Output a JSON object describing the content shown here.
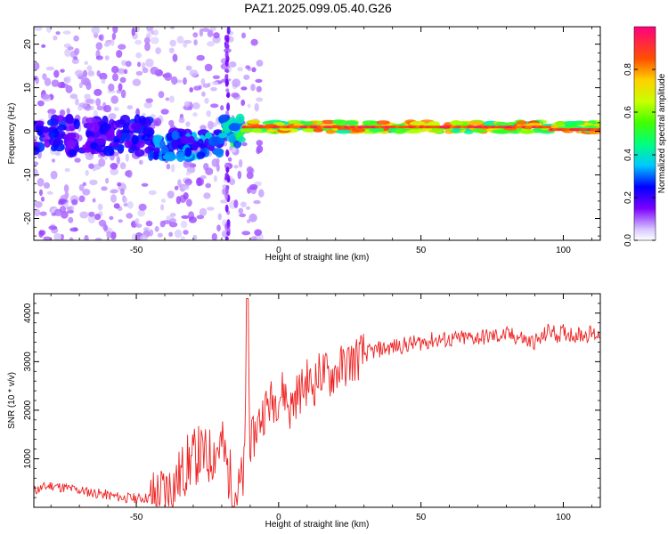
{
  "title": "PAZ1.2025.099.05.40.G26",
  "chart_data": [
    {
      "type": "heatmap",
      "title": "PAZ1.2025.099.05.40.G26",
      "xlabel": "Height of straight line (km)",
      "ylabel": "Frequency (Hz)",
      "xlim": [
        -86,
        113
      ],
      "ylim": [
        -25,
        24
      ],
      "xticks": [
        -50,
        0,
        50,
        100
      ],
      "yticks": [
        -20,
        -10,
        0,
        10,
        20
      ],
      "colorbar": {
        "label": "Normalized spectral amplitude",
        "range": [
          0.0,
          1.0
        ],
        "ticks": [
          0.0,
          0.2,
          0.4,
          0.6,
          0.8
        ]
      },
      "features": [
        {
          "x_range": [
            -86,
            -45
          ],
          "freq_center": -1,
          "freq_spread": 4,
          "amplitude": 0.25
        },
        {
          "x_range": [
            -45,
            -20
          ],
          "freq_center": -3,
          "freq_spread": 3,
          "amplitude": 0.35
        },
        {
          "x_range": [
            -20,
            -12
          ],
          "freq_center": 0,
          "freq_spread": 3,
          "amplitude": 0.5
        },
        {
          "x_range": [
            -12,
            113
          ],
          "freq_center": 1,
          "freq_spread": 1.2,
          "amplitude": 0.8
        }
      ]
    },
    {
      "type": "line",
      "xlabel": "Height of straight line (km)",
      "ylabel": "SNR (10 * v/v)",
      "xlim": [
        -86,
        113
      ],
      "ylim": [
        0,
        4400
      ],
      "xticks": [
        -50,
        0,
        50,
        100
      ],
      "yticks": [
        1000,
        2000,
        3000,
        4000
      ],
      "color": "#ee2222",
      "x": [
        -86,
        -80,
        -75,
        -70,
        -65,
        -60,
        -55,
        -50,
        -45,
        -42,
        -38,
        -35,
        -32,
        -28,
        -25,
        -22,
        -20,
        -18,
        -16,
        -14,
        -12,
        -11,
        -10,
        -8,
        -6,
        -4,
        -2,
        0,
        2,
        4,
        6,
        8,
        10,
        12,
        15,
        18,
        20,
        25,
        30,
        35,
        40,
        45,
        50,
        55,
        60,
        65,
        70,
        75,
        80,
        85,
        88,
        92,
        95,
        98,
        100,
        105,
        110,
        113
      ],
      "y": [
        350,
        450,
        400,
        350,
        300,
        250,
        200,
        180,
        200,
        250,
        400,
        600,
        900,
        1100,
        1000,
        1200,
        1300,
        800,
        400,
        300,
        700,
        4300,
        1200,
        1600,
        1900,
        2100,
        2200,
        2300,
        2400,
        2000,
        2300,
        2400,
        2600,
        2500,
        2800,
        2700,
        2800,
        3000,
        3150,
        3250,
        3300,
        3350,
        3400,
        3450,
        3450,
        3480,
        3500,
        3520,
        3550,
        3500,
        3400,
        3450,
        3650,
        3550,
        3600,
        3550,
        3580,
        3550
      ]
    }
  ]
}
